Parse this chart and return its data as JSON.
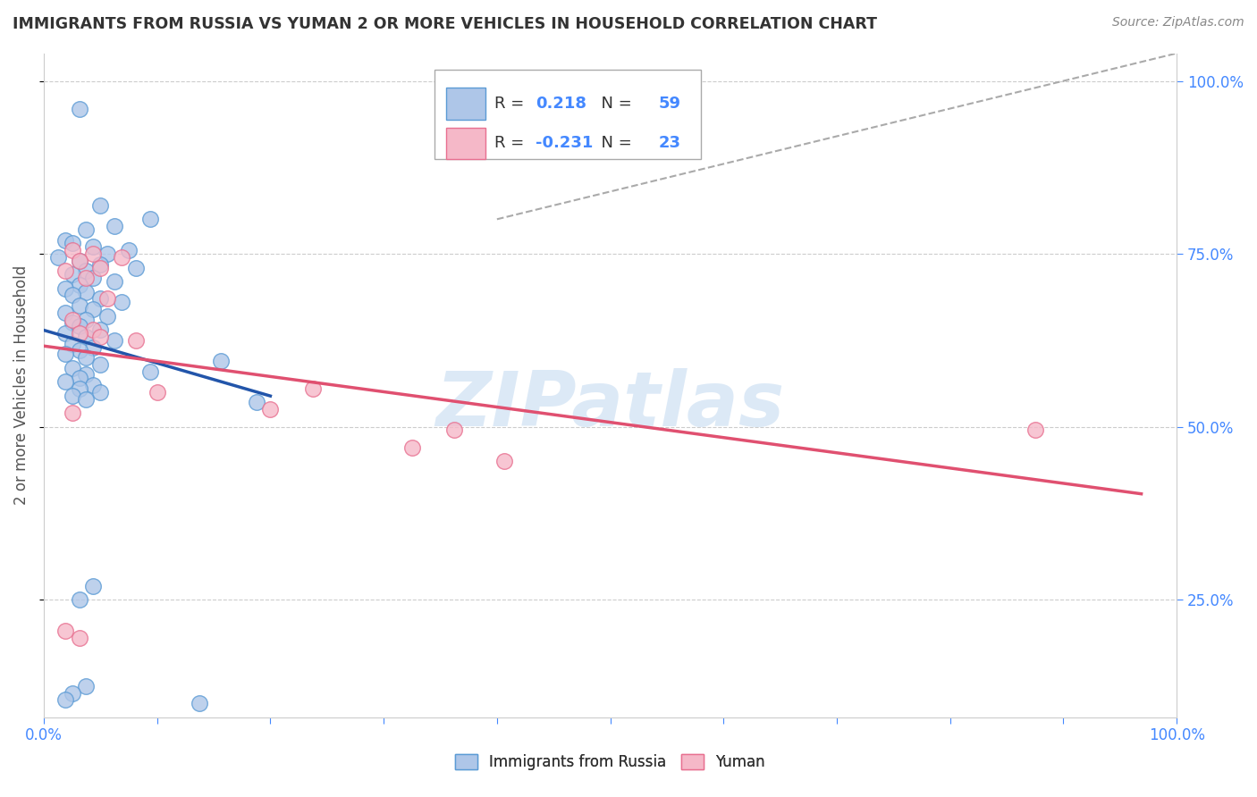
{
  "title": "IMMIGRANTS FROM RUSSIA VS YUMAN 2 OR MORE VEHICLES IN HOUSEHOLD CORRELATION CHART",
  "source": "Source: ZipAtlas.com",
  "ylabel": "2 or more Vehicles in Household",
  "blue_label": "Immigrants from Russia",
  "pink_label": "Yuman",
  "blue_R": 0.218,
  "blue_N": 59,
  "pink_R": -0.231,
  "pink_N": 23,
  "blue_color": "#aec6e8",
  "pink_color": "#f5b8c8",
  "blue_edge_color": "#5b9bd5",
  "pink_edge_color": "#e87090",
  "blue_line_color": "#2255aa",
  "pink_line_color": "#e05070",
  "watermark": "ZIPatlas",
  "blue_x": [
    0.5,
    0.8,
    1.5,
    1.0,
    0.6,
    0.3,
    0.4,
    0.7,
    1.2,
    0.9,
    0.2,
    0.5,
    0.8,
    1.3,
    0.6,
    0.4,
    0.7,
    1.0,
    0.5,
    0.3,
    0.6,
    0.4,
    0.8,
    1.1,
    0.5,
    0.7,
    0.3,
    0.9,
    0.6,
    0.4,
    0.5,
    0.8,
    0.3,
    0.6,
    1.0,
    0.4,
    0.7,
    0.5,
    0.3,
    0.6,
    2.5,
    0.8,
    0.4,
    1.5,
    0.6,
    0.5,
    0.3,
    0.7,
    0.5,
    0.8,
    0.4,
    0.6,
    3.0,
    0.7,
    0.5,
    0.6,
    0.4,
    0.3,
    2.2
  ],
  "blue_y": [
    96.0,
    82.0,
    80.0,
    79.0,
    78.5,
    77.0,
    76.5,
    76.0,
    75.5,
    75.0,
    74.5,
    74.0,
    73.5,
    73.0,
    72.5,
    72.0,
    71.5,
    71.0,
    70.5,
    70.0,
    69.5,
    69.0,
    68.5,
    68.0,
    67.5,
    67.0,
    66.5,
    66.0,
    65.5,
    65.0,
    64.5,
    64.0,
    63.5,
    63.0,
    62.5,
    62.0,
    61.5,
    61.0,
    60.5,
    60.0,
    59.5,
    59.0,
    58.5,
    58.0,
    57.5,
    57.0,
    56.5,
    56.0,
    55.5,
    55.0,
    54.5,
    54.0,
    53.5,
    27.0,
    25.0,
    12.5,
    11.5,
    10.5,
    10.0
  ],
  "pink_x": [
    0.4,
    0.7,
    1.1,
    0.5,
    0.8,
    0.3,
    0.6,
    0.9,
    0.4,
    0.7,
    0.5,
    0.8,
    1.3,
    1.6,
    3.8,
    5.8,
    3.2,
    5.2,
    6.5,
    0.3,
    0.5,
    14.0,
    0.4
  ],
  "pink_y": [
    75.5,
    75.0,
    74.5,
    74.0,
    73.0,
    72.5,
    71.5,
    68.5,
    65.5,
    64.0,
    63.5,
    63.0,
    62.5,
    55.0,
    55.5,
    49.5,
    52.5,
    47.0,
    45.0,
    20.5,
    19.5,
    49.5,
    52.0
  ],
  "xlim": [
    0.0,
    16.0
  ],
  "ylim": [
    8.0,
    104.0
  ],
  "yticks": [
    25.0,
    50.0,
    75.0,
    100.0
  ],
  "ytick_labels": [
    "25.0%",
    "50.0%",
    "75.0%",
    "100.0%"
  ],
  "xtick_vals": [
    0,
    1.6,
    3.2,
    4.8,
    6.4,
    8.0,
    9.6,
    11.2,
    12.8,
    14.4,
    16.0
  ],
  "xtick_labels": [
    "0.0%",
    "",
    "",
    "",
    "",
    "",
    "",
    "",
    "",
    "",
    "100.0%"
  ],
  "ref_line_x": [
    6.4,
    16.0
  ],
  "ref_line_y": [
    80.0,
    104.0
  ],
  "background_color": "#ffffff",
  "grid_color": "#cccccc",
  "tick_color": "#4488ff"
}
